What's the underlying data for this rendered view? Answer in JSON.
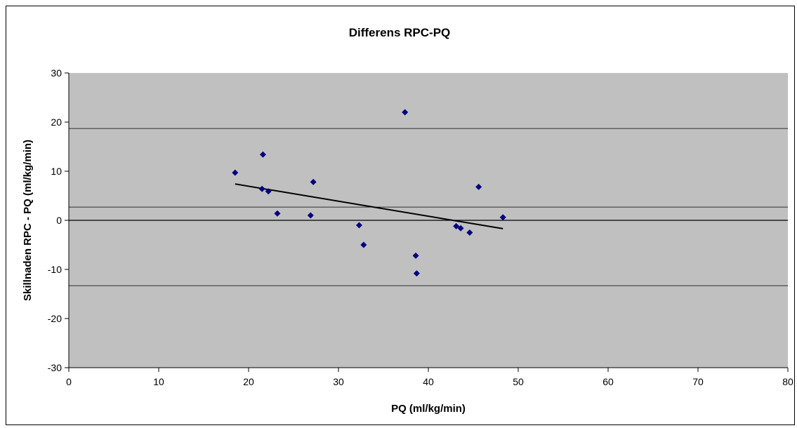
{
  "chart_data": {
    "type": "scatter",
    "title": "Differens RPC-PQ",
    "xlabel": "PQ (ml/kg/min)",
    "ylabel": "Skillnaden RPC - PQ (ml/kg/min)",
    "xlim": [
      0,
      80
    ],
    "ylim": [
      -30,
      30
    ],
    "x_ticks": [
      0,
      10,
      20,
      30,
      40,
      50,
      60,
      70,
      80
    ],
    "y_ticks": [
      -30,
      -20,
      -10,
      0,
      10,
      20,
      30
    ],
    "grid": false,
    "legend": "none",
    "colors": {
      "plot_bg": "#c0c0c0",
      "marker": "#000080",
      "trend": "#000000",
      "ref_lines": "#000000"
    },
    "series": [
      {
        "marker": "diamond",
        "points": [
          {
            "x": 18.5,
            "y": 9.7
          },
          {
            "x": 21.6,
            "y": 13.4
          },
          {
            "x": 21.5,
            "y": 6.4
          },
          {
            "x": 22.2,
            "y": 5.9
          },
          {
            "x": 23.2,
            "y": 1.4
          },
          {
            "x": 26.9,
            "y": 1.0
          },
          {
            "x": 27.2,
            "y": 7.8
          },
          {
            "x": 32.3,
            "y": -1.0
          },
          {
            "x": 32.8,
            "y": -5.0
          },
          {
            "x": 37.4,
            "y": 22.0
          },
          {
            "x": 38.6,
            "y": -7.2
          },
          {
            "x": 38.7,
            "y": -10.8
          },
          {
            "x": 43.1,
            "y": -1.2
          },
          {
            "x": 43.6,
            "y": -1.6
          },
          {
            "x": 44.6,
            "y": -2.5
          },
          {
            "x": 45.6,
            "y": 6.8
          },
          {
            "x": 48.3,
            "y": 0.6
          }
        ]
      }
    ],
    "trendline": {
      "x": [
        18.5,
        48.3
      ],
      "y": [
        7.4,
        -1.7
      ]
    },
    "reference_lines": [
      {
        "role": "mean",
        "y": 2.7
      },
      {
        "role": "upper_limit",
        "y": 18.7
      },
      {
        "role": "lower_limit",
        "y": -13.3
      },
      {
        "role": "zero",
        "y": 0
      }
    ]
  }
}
